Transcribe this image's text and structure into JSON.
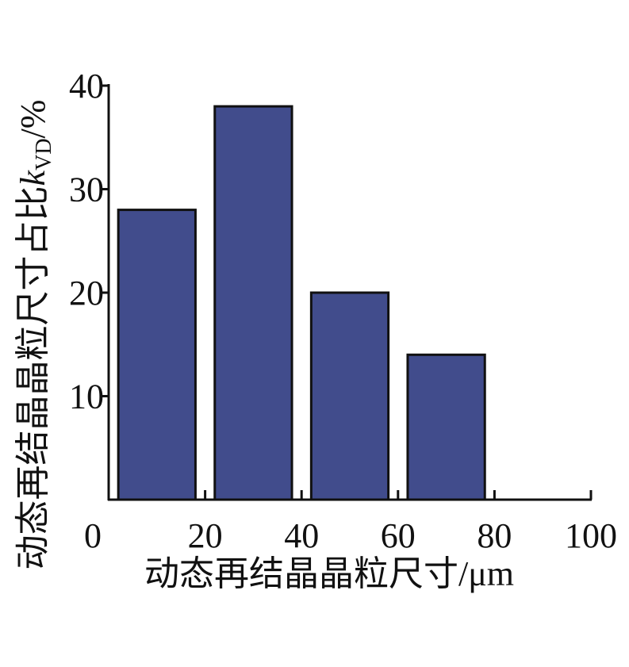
{
  "chart_data": {
    "type": "bar",
    "xlabel": "动态再结晶晶粒尺寸/μm",
    "ylabel": [
      "动态再结晶晶粒尺寸占比",
      "k",
      "VD",
      "/%"
    ],
    "x": [
      10,
      30,
      50,
      70
    ],
    "values": [
      28,
      38,
      20,
      14
    ],
    "color": "#414c8c",
    "xlim": [
      0,
      100
    ],
    "xticks": [
      0,
      20,
      40,
      60,
      80,
      100
    ],
    "ylim": [
      0,
      40
    ],
    "yticks": [
      10,
      20,
      30,
      40
    ],
    "grid": false
  }
}
